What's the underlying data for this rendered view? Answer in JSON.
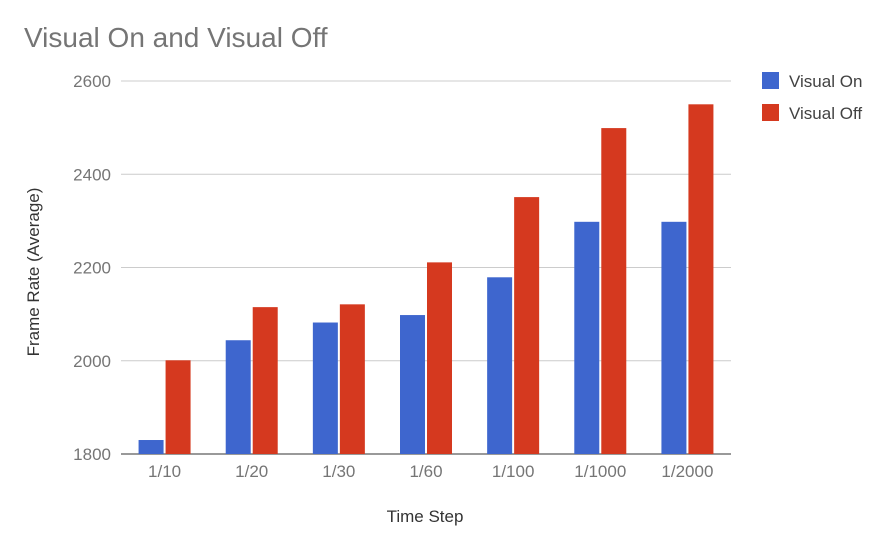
{
  "chart_data": {
    "type": "bar",
    "title": "Visual On and Visual Off",
    "xlabel": "Time Step",
    "ylabel": "Frame Rate (Average)",
    "categories": [
      "1/10",
      "1/20",
      "1/30",
      "1/60",
      "1/100",
      "1/1000",
      "1/2000"
    ],
    "series": [
      {
        "name": "Visual On",
        "color": "#3e66ce",
        "values": [
          1830,
          2044,
          2082,
          2098,
          2179,
          2298,
          2298
        ]
      },
      {
        "name": "Visual Off",
        "color": "#d5391f",
        "values": [
          2001,
          2115,
          2121,
          2211,
          2351,
          2499,
          2550
        ]
      }
    ],
    "ylim": [
      1800,
      2600
    ],
    "yticks": [
      1800,
      2000,
      2200,
      2400,
      2600
    ],
    "grid": true,
    "legend_position": "top-right"
  }
}
